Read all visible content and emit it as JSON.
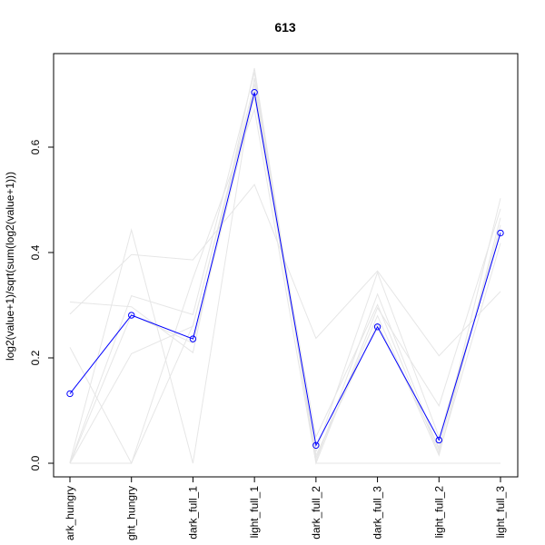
{
  "chart_data": {
    "type": "line",
    "title": "613",
    "xlabel": "",
    "ylabel": "log2(value+1)/sqrt(sum(log2(value+1)))",
    "categories": [
      "dark_hungry",
      "light_hungry",
      "dark_full_1",
      "light_full_1",
      "dark_full_2",
      "dark_full_3",
      "light_full_2",
      "light_full_3"
    ],
    "visible_category_labels": [
      "ark_hungry",
      "ght_hungry",
      "dark_full_1",
      "light_full_1",
      "dark_full_2",
      "dark_full_3",
      "light_full_2",
      "light_full_3"
    ],
    "y_ticks": [
      "0.0",
      "0.2",
      "0.4",
      "0.6"
    ],
    "ylim": [
      -0.025,
      0.76
    ],
    "grid": false,
    "highlight": {
      "color": "#0000ff",
      "values": [
        0.132,
        0.281,
        0.236,
        0.704,
        0.034,
        0.259,
        0.044,
        0.437
      ]
    },
    "background_series": {
      "color": "#e6e6e6",
      "values": [
        [
          0.306,
          0.297,
          0.21,
          0.75,
          0.004,
          0.321,
          0.025,
          0.503
        ],
        [
          0.283,
          0.396,
          0.386,
          0.529,
          0.237,
          0.365,
          0.204,
          0.326
        ],
        [
          0.22,
          0.0,
          0.351,
          0.672,
          0.0,
          0.295,
          0.109,
          0.483
        ],
        [
          0.002,
          0.443,
          0.0,
          0.731,
          0.01,
          0.28,
          0.015,
          0.466
        ],
        [
          0.0,
          0.208,
          0.26,
          0.72,
          0.015,
          0.265,
          0.03,
          0.452
        ],
        [
          0.0,
          0.318,
          0.282,
          0.742,
          0.0,
          0.0,
          0.0,
          0.0
        ],
        [
          0.0,
          0.282,
          0.228,
          0.695,
          0.022,
          0.362,
          0.05,
          0.44
        ],
        [
          0.0,
          0.0,
          0.262,
          0.708,
          0.05,
          0.301,
          0.019,
          0.418
        ]
      ]
    }
  }
}
